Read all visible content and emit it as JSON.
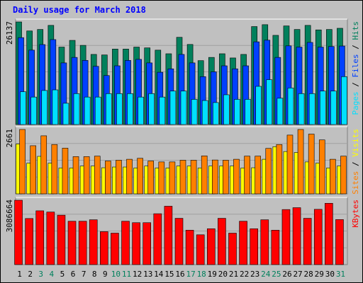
{
  "title": "Daily usage for March 2018",
  "colors": {
    "hits": "#00805c",
    "files": "#0040ff",
    "pages": "#00e0ff",
    "visits": "#ffff00",
    "sites": "#ff8000",
    "kbytes": "#ff0000",
    "weekend_label": "#00805c",
    "weekday_label": "#000000",
    "background": "#c0c0c0"
  },
  "chart_data": [
    {
      "type": "bar",
      "panel": "top",
      "max_label": "26137",
      "legend": [
        {
          "text": "Pages",
          "color": "#00e0ff"
        },
        {
          "text": " / ",
          "color": "#000000"
        },
        {
          "text": "Files",
          "color": "#0040ff"
        },
        {
          "text": " / ",
          "color": "#000000"
        },
        {
          "text": "Hits",
          "color": "#00805c"
        }
      ],
      "ylim": [
        0,
        26137
      ],
      "series": [
        {
          "name": "Hits",
          "values": [
            26137,
            23840,
            24220,
            25260,
            19730,
            21440,
            20170,
            17860,
            17730,
            19230,
            19230,
            19730,
            19530,
            18950,
            18030,
            22220,
            20400,
            16280,
            17100,
            18030,
            16960,
            17860,
            24960,
            25440,
            22720,
            25120,
            24220,
            25260,
            24110,
            24220,
            24520
          ]
        },
        {
          "name": "Files",
          "values": [
            22140,
            18950,
            20370,
            21640,
            15700,
            17100,
            16340,
            14830,
            12480,
            14960,
            16340,
            16600,
            15700,
            13320,
            14190,
            17860,
            15700,
            12200,
            13430,
            14960,
            14190,
            14960,
            21070,
            21490,
            17100,
            20040,
            19730,
            20920,
            19730,
            19880,
            20000
          ]
        },
        {
          "name": "Pages",
          "values": [
            8360,
            7000,
            8670,
            8830,
            5420,
            7880,
            7000,
            7000,
            7880,
            7880,
            7880,
            7000,
            7880,
            7000,
            8530,
            8530,
            6410,
            6120,
            5600,
            7580,
            6410,
            6410,
            9730,
            11420,
            6700,
            9320,
            7880,
            7880,
            8530,
            8530,
            12200
          ]
        }
      ]
    },
    {
      "type": "bar",
      "panel": "middle",
      "max_label": "2661",
      "legend": [
        {
          "text": "Sites",
          "color": "#ff8000"
        },
        {
          "text": " / ",
          "color": "#000000"
        },
        {
          "text": "Visits",
          "color": "#ffff00"
        }
      ],
      "ylim": [
        0,
        2661
      ],
      "series": [
        {
          "name": "Visits",
          "values": [
            2060,
            1270,
            1550,
            1270,
            1070,
            1070,
            1150,
            1150,
            1080,
            1110,
            1110,
            1070,
            1150,
            1070,
            1070,
            1150,
            1150,
            1070,
            1150,
            1150,
            1150,
            1070,
            1080,
            1430,
            1950,
            1750,
            1710,
            1320,
            1270,
            1070,
            1150
          ]
        },
        {
          "name": "Sites",
          "values": [
            2661,
            1990,
            2400,
            2040,
            1890,
            1540,
            1540,
            1560,
            1360,
            1390,
            1430,
            1470,
            1360,
            1320,
            1320,
            1390,
            1390,
            1570,
            1400,
            1390,
            1430,
            1560,
            1560,
            1880,
            2040,
            2430,
            2661,
            2470,
            2230,
            1430,
            1560
          ]
        }
      ]
    },
    {
      "type": "bar",
      "panel": "bottom",
      "max_label": "3086664",
      "legend": [
        {
          "text": "KBytes",
          "color": "#ff0000"
        }
      ],
      "ylim": [
        0,
        3086664
      ],
      "series": [
        {
          "name": "KBytes",
          "values": [
            3086664,
            2210000,
            2580000,
            2520000,
            2370000,
            2080000,
            2080000,
            2150000,
            1580000,
            1510000,
            2080000,
            2010000,
            2010000,
            2440000,
            2800000,
            2220000,
            1650000,
            1430000,
            1720000,
            2220000,
            1510000,
            2080000,
            1720000,
            2150000,
            1650000,
            2640000,
            2730000,
            2220000,
            2650000,
            2940000,
            2160000
          ]
        }
      ]
    }
  ],
  "days": [
    "1",
    "2",
    "3",
    "4",
    "5",
    "6",
    "7",
    "8",
    "9",
    "10",
    "11",
    "12",
    "13",
    "14",
    "15",
    "16",
    "17",
    "18",
    "19",
    "20",
    "21",
    "22",
    "23",
    "24",
    "25",
    "26",
    "27",
    "28",
    "29",
    "30",
    "31"
  ],
  "weekend_days": [
    "3",
    "4",
    "10",
    "11",
    "17",
    "18",
    "24",
    "25",
    "31"
  ]
}
